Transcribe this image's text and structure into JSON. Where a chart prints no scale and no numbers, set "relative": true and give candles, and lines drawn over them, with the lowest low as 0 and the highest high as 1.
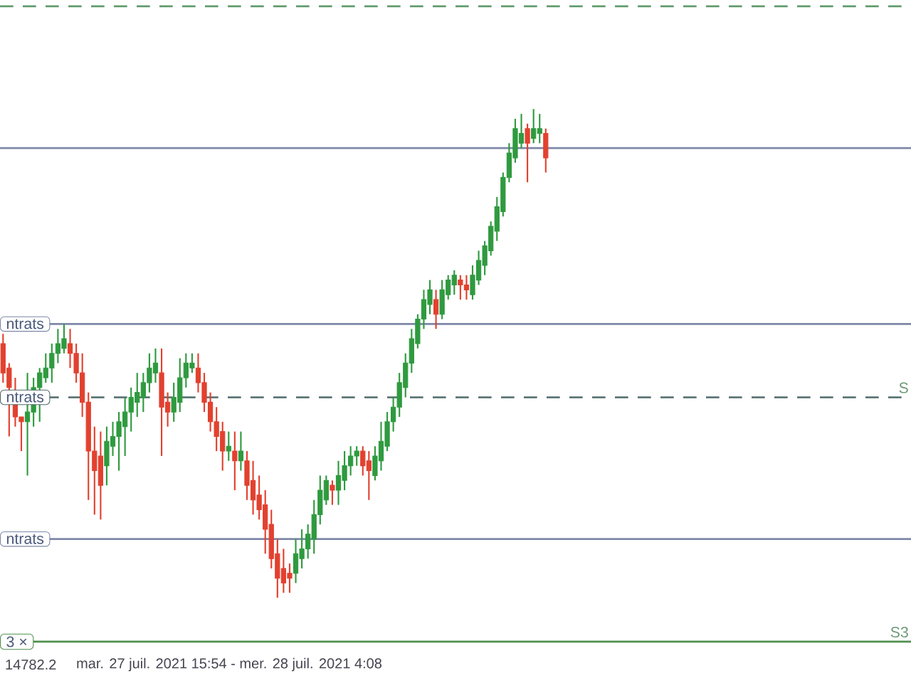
{
  "chart_data": {
    "type": "candlestick",
    "relative": true,
    "categories": [
      null,
      null,
      null,
      null,
      null,
      null,
      null,
      null,
      null,
      null,
      null,
      null,
      null,
      null,
      null,
      null,
      null,
      null,
      null,
      null,
      null,
      null,
      null,
      null,
      null,
      null,
      null,
      null,
      null,
      null,
      null,
      null,
      null,
      null,
      null,
      null,
      null,
      null,
      null,
      null,
      null,
      null,
      null,
      null,
      null,
      null,
      null,
      null,
      null,
      null,
      null,
      null,
      null,
      null,
      null,
      null,
      null,
      null,
      null,
      null,
      null,
      null,
      null,
      null,
      null,
      null,
      null,
      null,
      null,
      null,
      null,
      null,
      null,
      null,
      null,
      null,
      null,
      null,
      null,
      null,
      null,
      null,
      null,
      null,
      null,
      null,
      null,
      null,
      null,
      null
    ],
    "ohlc": [
      [
        0.52,
        0.54,
        0.44,
        0.46
      ],
      [
        0.47,
        0.48,
        0.33,
        0.43
      ],
      [
        0.42,
        0.45,
        0.35,
        0.37
      ],
      [
        0.37,
        0.37,
        0.3,
        0.36
      ],
      [
        0.36,
        0.46,
        0.25,
        0.38
      ],
      [
        0.38,
        0.45,
        0.35,
        0.43
      ],
      [
        0.43,
        0.47,
        0.36,
        0.46
      ],
      [
        0.45,
        0.5,
        0.44,
        0.47
      ],
      [
        0.47,
        0.52,
        0.44,
        0.5
      ],
      [
        0.5,
        0.55,
        0.48,
        0.52
      ],
      [
        0.51,
        0.56,
        0.5,
        0.53
      ],
      [
        0.52,
        0.55,
        0.47,
        0.5
      ],
      [
        0.5,
        0.52,
        0.44,
        0.46
      ],
      [
        0.46,
        0.5,
        0.37,
        0.4
      ],
      [
        0.4,
        0.42,
        0.2,
        0.3
      ],
      [
        0.3,
        0.35,
        0.17,
        0.26
      ],
      [
        0.29,
        0.34,
        0.16,
        0.23
      ],
      [
        0.27,
        0.35,
        0.23,
        0.32
      ],
      [
        0.31,
        0.36,
        0.29,
        0.33
      ],
      [
        0.33,
        0.38,
        0.26,
        0.36
      ],
      [
        0.35,
        0.41,
        0.29,
        0.38
      ],
      [
        0.38,
        0.43,
        0.34,
        0.41
      ],
      [
        0.4,
        0.46,
        0.37,
        0.42
      ],
      [
        0.41,
        0.46,
        0.38,
        0.44
      ],
      [
        0.44,
        0.5,
        0.42,
        0.47
      ],
      [
        0.46,
        0.51,
        0.44,
        0.48
      ],
      [
        0.46,
        0.51,
        0.29,
        0.39
      ],
      [
        0.4,
        0.42,
        0.35,
        0.38
      ],
      [
        0.38,
        0.44,
        0.36,
        0.41
      ],
      [
        0.4,
        0.49,
        0.38,
        0.45
      ],
      [
        0.45,
        0.5,
        0.43,
        0.48
      ],
      [
        0.47,
        0.5,
        0.46,
        0.48
      ],
      [
        0.47,
        0.5,
        0.42,
        0.44
      ],
      [
        0.44,
        0.46,
        0.38,
        0.4
      ],
      [
        0.4,
        0.42,
        0.34,
        0.36
      ],
      [
        0.36,
        0.39,
        0.3,
        0.33
      ],
      [
        0.34,
        0.36,
        0.26,
        0.3
      ],
      [
        0.3,
        0.34,
        0.28,
        0.31
      ],
      [
        0.3,
        0.34,
        0.22,
        0.28
      ],
      [
        0.28,
        0.34,
        0.26,
        0.3
      ],
      [
        0.28,
        0.3,
        0.2,
        0.23
      ],
      [
        0.24,
        0.28,
        0.17,
        0.2
      ],
      [
        0.21,
        0.25,
        0.16,
        0.18
      ],
      [
        0.19,
        0.22,
        0.09,
        0.14
      ],
      [
        0.15,
        0.18,
        0.06,
        0.08
      ],
      [
        0.09,
        0.12,
        0.0,
        0.04
      ],
      [
        0.06,
        0.1,
        0.01,
        0.03
      ],
      [
        0.05,
        0.07,
        0.01,
        0.04
      ],
      [
        0.05,
        0.12,
        0.03,
        0.09
      ],
      [
        0.08,
        0.14,
        0.06,
        0.1
      ],
      [
        0.1,
        0.15,
        0.08,
        0.13
      ],
      [
        0.12,
        0.2,
        0.09,
        0.17
      ],
      [
        0.17,
        0.25,
        0.15,
        0.22
      ],
      [
        0.2,
        0.25,
        0.19,
        0.24
      ],
      [
        0.23,
        0.24,
        0.19,
        0.22
      ],
      [
        0.22,
        0.28,
        0.19,
        0.25
      ],
      [
        0.24,
        0.3,
        0.22,
        0.27
      ],
      [
        0.27,
        0.31,
        0.25,
        0.29
      ],
      [
        0.29,
        0.31,
        0.27,
        0.3
      ],
      [
        0.3,
        0.31,
        0.25,
        0.27
      ],
      [
        0.28,
        0.3,
        0.2,
        0.26
      ],
      [
        0.25,
        0.31,
        0.24,
        0.29
      ],
      [
        0.28,
        0.36,
        0.26,
        0.32
      ],
      [
        0.31,
        0.38,
        0.3,
        0.36
      ],
      [
        0.36,
        0.41,
        0.34,
        0.39
      ],
      [
        0.39,
        0.46,
        0.37,
        0.44
      ],
      [
        0.43,
        0.5,
        0.41,
        0.48
      ],
      [
        0.48,
        0.55,
        0.46,
        0.53
      ],
      [
        0.52,
        0.58,
        0.51,
        0.57
      ],
      [
        0.57,
        0.63,
        0.55,
        0.61
      ],
      [
        0.6,
        0.65,
        0.58,
        0.63
      ],
      [
        0.61,
        0.63,
        0.55,
        0.58
      ],
      [
        0.58,
        0.65,
        0.57,
        0.63
      ],
      [
        0.62,
        0.66,
        0.61,
        0.65
      ],
      [
        0.64,
        0.67,
        0.62,
        0.66
      ],
      [
        0.65,
        0.66,
        0.61,
        0.64
      ],
      [
        0.64,
        0.66,
        0.61,
        0.63
      ],
      [
        0.62,
        0.68,
        0.61,
        0.66
      ],
      [
        0.65,
        0.71,
        0.64,
        0.69
      ],
      [
        0.68,
        0.73,
        0.66,
        0.72
      ],
      [
        0.71,
        0.77,
        0.7,
        0.76
      ],
      [
        0.75,
        0.82,
        0.73,
        0.8
      ],
      [
        0.79,
        0.87,
        0.78,
        0.86
      ],
      [
        0.86,
        0.93,
        0.85,
        0.91
      ],
      [
        0.9,
        0.98,
        0.89,
        0.96
      ],
      [
        0.93,
        0.99,
        0.92,
        0.95
      ],
      [
        0.96,
        0.97,
        0.85,
        0.93
      ],
      [
        0.94,
        1.0,
        0.93,
        0.96
      ],
      [
        0.95,
        0.99,
        0.93,
        0.96
      ],
      [
        0.95,
        0.96,
        0.87,
        0.9
      ]
    ],
    "colors": [
      "#e2412f",
      "#e2412f",
      "#e2412f",
      "#e2412f",
      "#2f9a3f",
      "#2f9a3f",
      "#2f9a3f",
      "#2f9a3f",
      "#2f9a3f",
      "#2f9a3f",
      "#2f9a3f",
      "#e2412f",
      "#e2412f",
      "#e2412f",
      "#e2412f",
      "#e2412f",
      "#e2412f",
      "#2f9a3f",
      "#2f9a3f",
      "#2f9a3f",
      "#2f9a3f",
      "#2f9a3f",
      "#2f9a3f",
      "#2f9a3f",
      "#2f9a3f",
      "#2f9a3f",
      "#e2412f",
      "#e2412f",
      "#2f9a3f",
      "#2f9a3f",
      "#2f9a3f",
      "#2f9a3f",
      "#e2412f",
      "#e2412f",
      "#e2412f",
      "#e2412f",
      "#e2412f",
      "#2f9a3f",
      "#e2412f",
      "#2f9a3f",
      "#e2412f",
      "#e2412f",
      "#e2412f",
      "#e2412f",
      "#e2412f",
      "#e2412f",
      "#e2412f",
      "#e2412f",
      "#2f9a3f",
      "#2f9a3f",
      "#2f9a3f",
      "#2f9a3f",
      "#2f9a3f",
      "#2f9a3f",
      "#e2412f",
      "#2f9a3f",
      "#2f9a3f",
      "#2f9a3f",
      "#2f9a3f",
      "#e2412f",
      "#e2412f",
      "#2f9a3f",
      "#2f9a3f",
      "#2f9a3f",
      "#2f9a3f",
      "#2f9a3f",
      "#2f9a3f",
      "#2f9a3f",
      "#2f9a3f",
      "#2f9a3f",
      "#2f9a3f",
      "#e2412f",
      "#2f9a3f",
      "#2f9a3f",
      "#2f9a3f",
      "#e2412f",
      "#e2412f",
      "#2f9a3f",
      "#2f9a3f",
      "#2f9a3f",
      "#2f9a3f",
      "#2f9a3f",
      "#2f9a3f",
      "#2f9a3f",
      "#2f9a3f",
      "#2f9a3f",
      "#e2412f",
      "#2f9a3f",
      "#2f9a3f",
      "#e2412f"
    ],
    "ref_lines": [
      {
        "axis": "y",
        "value": 1.21,
        "color": "#5f9a6a",
        "line_style": "dashed"
      },
      {
        "axis": "y",
        "value": 0.92,
        "color": "#7d88a8"
      },
      {
        "axis": "y",
        "value": 0.56,
        "label": "ntrats",
        "color": "#7d88a8"
      },
      {
        "axis": "y",
        "value": 0.41,
        "label": "ntrats",
        "color": "#4f6a6a",
        "line_style": "dashed"
      },
      {
        "axis": "y",
        "value": 0.12,
        "label": "ntrats",
        "color": "#7d88a8"
      },
      {
        "axis": "y",
        "value": -0.09,
        "label": "3 ×",
        "color": "#4e8f4e"
      }
    ],
    "annotations": [
      "14782.2",
      "mar. 27 juil. 2021 15:54 - mer. 28 juil. 2021 4:08",
      {
        "text": "S",
        "y": 0.41
      },
      {
        "text": "S3",
        "y": -0.09
      }
    ]
  }
}
